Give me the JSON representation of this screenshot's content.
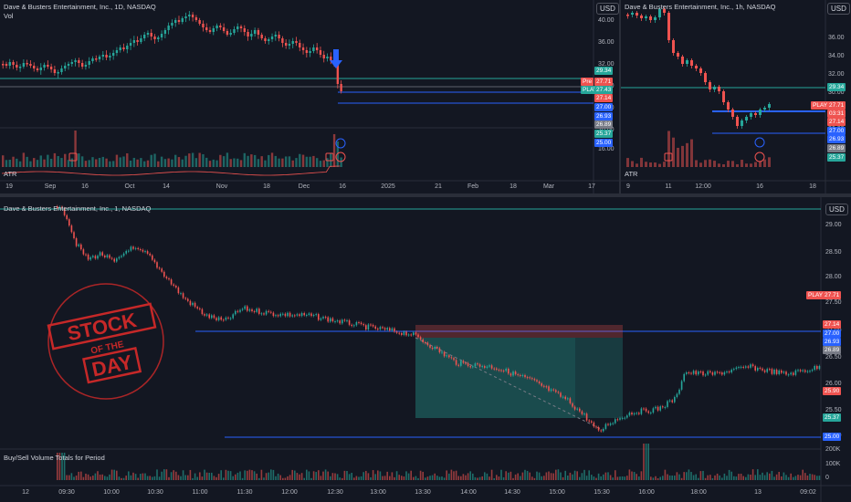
{
  "colors": {
    "bg": "#131722",
    "up": "#26a69a",
    "down": "#ef5350",
    "blue": "#2962ff",
    "grid": "#1e222d",
    "axis": "#2a2e39",
    "stamp": "#c62828"
  },
  "daily": {
    "title": "Dave & Busters Entertainment, Inc., 1D, NASDAQ",
    "vol_label": "Vol",
    "atr_label": "ATR",
    "currency": "USD",
    "y_ticks": [
      "40.00",
      "36.00",
      "32.00",
      "28.00",
      "24.00",
      "20.00",
      "16.00"
    ],
    "x_ticks": [
      "19",
      "Sep",
      "16",
      "Oct",
      "14",
      "Nov",
      "18",
      "Dec",
      "16",
      "2025",
      "21",
      "Feb",
      "18",
      "Mar",
      "17"
    ],
    "tags": [
      {
        "text": "29.34",
        "color": "#26a69a"
      },
      {
        "text": "Pre",
        "color": "#ef5350"
      },
      {
        "text": "27.71",
        "color": "#ef5350"
      },
      {
        "text": "PLAY",
        "color": "#26a69a"
      },
      {
        "text": "27.43",
        "color": "#26a69a"
      },
      {
        "text": "27.14",
        "color": "#ef5350"
      },
      {
        "text": "27.00",
        "color": "#2962ff"
      },
      {
        "text": "26.93",
        "color": "#2962ff"
      },
      {
        "text": "26.89",
        "color": "#787b86"
      },
      {
        "text": "25.37",
        "color": "#26a69a"
      },
      {
        "text": "25.00",
        "color": "#2962ff"
      }
    ]
  },
  "hourly": {
    "title": "Dave & Busters Entertainment, Inc., 1h, NASDAQ",
    "atr_label": "ATR",
    "currency": "USD",
    "y_ticks": [
      "36.00",
      "34.00",
      "32.00",
      "30.00",
      "28.00",
      "26.00",
      "24.00",
      "22.00",
      "20.00",
      "18.00"
    ],
    "x_ticks": [
      "9",
      "11",
      "12:00",
      "16",
      "18"
    ],
    "tags": [
      {
        "text": "29.34",
        "color": "#26a69a"
      },
      {
        "text": "PLAY",
        "color": "#ef5350"
      },
      {
        "text": "27.71",
        "color": "#ef5350"
      },
      {
        "text": "03:31",
        "color": "#ef5350"
      },
      {
        "text": "27.14",
        "color": "#ef5350"
      },
      {
        "text": "27.00",
        "color": "#2962ff"
      },
      {
        "text": "26.93",
        "color": "#2962ff"
      },
      {
        "text": "26.89",
        "color": "#787b86"
      },
      {
        "text": "25.37",
        "color": "#26a69a"
      }
    ]
  },
  "minute": {
    "title": "Dave & Busters Entertainment, Inc., 1, NASDAQ",
    "vol_label": "Buy/Sell Volume Totals for Period",
    "currency": "USD",
    "y_ticks": [
      "29.00",
      "28.50",
      "28.00",
      "27.50",
      "27.00",
      "26.50",
      "26.00",
      "25.50",
      "25.00"
    ],
    "vol_ticks": [
      "200K",
      "100K",
      "0"
    ],
    "x_ticks": [
      "12",
      "09:30",
      "10:00",
      "10:30",
      "11:00",
      "11:30",
      "12:00",
      "12:30",
      "13:00",
      "13:30",
      "14:00",
      "14:30",
      "15:00",
      "15:30",
      "16:00",
      "18:00",
      "13",
      "09:02"
    ],
    "tags": [
      {
        "text": "PLAY",
        "color": "#ef5350"
      },
      {
        "text": "27.71",
        "color": "#ef5350"
      },
      {
        "text": "27.14",
        "color": "#ef5350"
      },
      {
        "text": "27.00",
        "color": "#2962ff"
      },
      {
        "text": "26.93",
        "color": "#2962ff"
      },
      {
        "text": "26.89",
        "color": "#787b86"
      },
      {
        "text": "25.90",
        "color": "#ef5350"
      },
      {
        "text": "25.37",
        "color": "#26a69a"
      },
      {
        "text": "25.00",
        "color": "#2962ff"
      }
    ]
  },
  "stamp": {
    "line1": "STOCK",
    "line2": "OF THE",
    "line3": "DAY"
  }
}
